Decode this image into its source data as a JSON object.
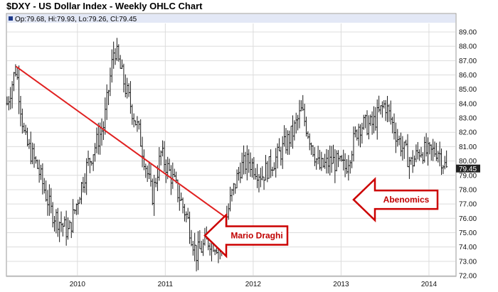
{
  "chart_data": {
    "type": "ohlc",
    "title": "$DXY - US Dollar Index - Weekly OHLC Chart",
    "ohlc_summary": "Op:79.68, Hi:79.93, Lo:79.26, Cl:79.45",
    "last_value_label": "79.45",
    "x_ticks": [
      "2010",
      "2011",
      "2012",
      "2013",
      "2014"
    ],
    "x_tick_dates": [
      2010.0,
      2011.0,
      2012.0,
      2013.0,
      2014.0
    ],
    "xlim": [
      2009.2,
      2014.3
    ],
    "y_ticks": [
      "72.00",
      "73.00",
      "74.00",
      "75.00",
      "76.00",
      "77.00",
      "78.00",
      "79.00",
      "80.00",
      "81.00",
      "82.00",
      "83.00",
      "84.00",
      "85.00",
      "86.00",
      "87.00",
      "88.00",
      "89.00"
    ],
    "ylim": [
      72,
      89
    ],
    "grid": true,
    "series_key_points": [
      {
        "x": 2009.2,
        "y": 84.0
      },
      {
        "x": 2009.3,
        "y": 86.5
      },
      {
        "x": 2009.4,
        "y": 81.5
      },
      {
        "x": 2009.55,
        "y": 79.5
      },
      {
        "x": 2009.7,
        "y": 76.5
      },
      {
        "x": 2009.9,
        "y": 75.0
      },
      {
        "x": 2010.1,
        "y": 79.5
      },
      {
        "x": 2010.3,
        "y": 82.5
      },
      {
        "x": 2010.42,
        "y": 88.0
      },
      {
        "x": 2010.55,
        "y": 85.0
      },
      {
        "x": 2010.7,
        "y": 82.0
      },
      {
        "x": 2010.85,
        "y": 77.5
      },
      {
        "x": 2010.95,
        "y": 80.5
      },
      {
        "x": 2011.1,
        "y": 78.5
      },
      {
        "x": 2011.25,
        "y": 76.0
      },
      {
        "x": 2011.35,
        "y": 73.5
      },
      {
        "x": 2011.5,
        "y": 74.5
      },
      {
        "x": 2011.62,
        "y": 74.0
      },
      {
        "x": 2011.75,
        "y": 77.5
      },
      {
        "x": 2011.85,
        "y": 79.5
      },
      {
        "x": 2011.95,
        "y": 80.0
      },
      {
        "x": 2012.1,
        "y": 79.0
      },
      {
        "x": 2012.3,
        "y": 80.5
      },
      {
        "x": 2012.45,
        "y": 82.0
      },
      {
        "x": 2012.55,
        "y": 83.5
      },
      {
        "x": 2012.65,
        "y": 81.5
      },
      {
        "x": 2012.75,
        "y": 79.5
      },
      {
        "x": 2012.9,
        "y": 80.0
      },
      {
        "x": 2013.05,
        "y": 79.5
      },
      {
        "x": 2013.2,
        "y": 82.5
      },
      {
        "x": 2013.35,
        "y": 82.5
      },
      {
        "x": 2013.5,
        "y": 84.0
      },
      {
        "x": 2013.65,
        "y": 81.5
      },
      {
        "x": 2013.8,
        "y": 79.8
      },
      {
        "x": 2013.9,
        "y": 80.8
      },
      {
        "x": 2014.0,
        "y": 80.5
      },
      {
        "x": 2014.1,
        "y": 80.8
      },
      {
        "x": 2014.2,
        "y": 79.4
      }
    ],
    "trendline": {
      "x1": 2009.3,
      "y1": 86.6,
      "x2": 2011.68,
      "y2": 76.1
    },
    "annotations": [
      {
        "text": "Mario Draghi",
        "x": 2011.92,
        "y": 74.8
      },
      {
        "text": "Abenomics",
        "x": 2013.62,
        "y": 77.3
      }
    ],
    "colors": {
      "bars": "#1a1a1a",
      "trendline": "#e02020",
      "arrow_stroke": "#cc0000",
      "header_band": "#e3e8f6",
      "grid": "#dcdcdc",
      "last_label_bg": "#222222"
    }
  }
}
